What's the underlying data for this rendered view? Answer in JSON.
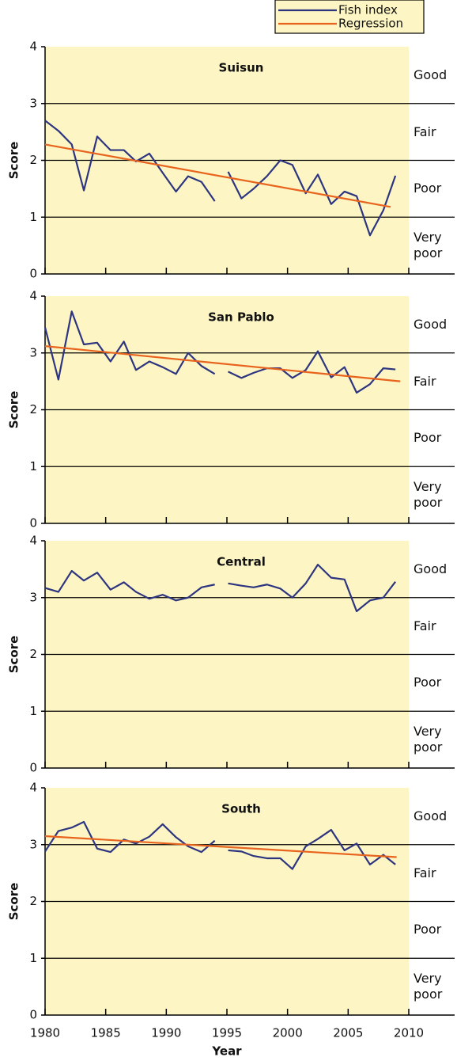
{
  "chart_data": [
    {
      "type": "line",
      "title": "Suisun",
      "ylabel": "Score",
      "x": [
        1980,
        1981.1,
        1982.2,
        1983.2,
        1984.3,
        1985.4,
        1986.5,
        1987.5,
        1988.6,
        1989.7,
        1990.8,
        1991.8,
        1992.9,
        1994.0,
        1994.5,
        1995.1,
        1996.2,
        1997.2,
        1998.3,
        1999.4,
        2000.4,
        2001.5,
        2002.5,
        2003.6,
        2004.7,
        2005.7,
        2006.8,
        2007.9,
        2008.9
      ],
      "series": [
        {
          "name": "Fish index",
          "color": "#2e3580",
          "values": [
            2.7,
            2.52,
            2.28,
            1.47,
            2.42,
            2.18,
            2.18,
            1.98,
            2.12,
            1.78,
            1.45,
            1.72,
            1.62,
            1.28,
            null,
            1.8,
            1.33,
            1.5,
            1.72,
            2.0,
            1.92,
            1.42,
            1.75,
            1.23,
            1.45,
            1.37,
            0.68,
            1.12,
            1.73
          ]
        },
        {
          "name": "Regression",
          "color": "#e8641e",
          "x": [
            1980,
            2008.5
          ],
          "values": [
            2.28,
            1.18
          ]
        }
      ],
      "bands": [
        "Very\npoor",
        "Poor",
        "Fair",
        "Good"
      ],
      "xlim": [
        1980,
        2010
      ],
      "xticks": [
        1980,
        1985,
        1990,
        1995,
        2000,
        2005,
        2010
      ],
      "ylim": [
        0,
        4
      ],
      "yticks": [
        0,
        1,
        2,
        3,
        4
      ],
      "grid": true,
      "legend": "top-right"
    },
    {
      "type": "line",
      "title": "San Pablo",
      "ylabel": "Score",
      "x": [
        1980,
        1981.1,
        1982.2,
        1983.2,
        1984.3,
        1985.4,
        1986.5,
        1987.5,
        1988.6,
        1989.7,
        1990.8,
        1991.8,
        1992.9,
        1994.0,
        1994.5,
        1995.1,
        1996.2,
        1997.2,
        1998.3,
        1999.4,
        2000.4,
        2001.5,
        2002.5,
        2003.6,
        2004.7,
        2005.7,
        2006.8,
        2007.9,
        2008.9
      ],
      "series": [
        {
          "name": "Fish index",
          "color": "#2e3580",
          "values": [
            3.45,
            2.53,
            3.73,
            3.15,
            3.18,
            2.85,
            3.2,
            2.7,
            2.85,
            2.75,
            2.63,
            3.0,
            2.77,
            2.63,
            null,
            2.67,
            2.56,
            2.65,
            2.73,
            2.73,
            2.56,
            2.7,
            3.03,
            2.57,
            2.75,
            2.3,
            2.45,
            2.73,
            2.71
          ]
        },
        {
          "name": "Regression",
          "color": "#e8641e",
          "x": [
            1980,
            2009.3
          ],
          "values": [
            3.12,
            2.5
          ]
        }
      ],
      "bands": [
        "Very\npoor",
        "Poor",
        "Fair",
        "Good"
      ],
      "xlim": [
        1980,
        2010
      ],
      "xticks": [
        1980,
        1985,
        1990,
        1995,
        2000,
        2005,
        2010
      ],
      "ylim": [
        0,
        4
      ],
      "yticks": [
        0,
        1,
        2,
        3,
        4
      ],
      "grid": true
    },
    {
      "type": "line",
      "title": "Central",
      "ylabel": "Score",
      "x": [
        1980,
        1981.1,
        1982.2,
        1983.2,
        1984.3,
        1985.4,
        1986.5,
        1987.5,
        1988.6,
        1989.7,
        1990.8,
        1991.8,
        1992.9,
        1994.0,
        1994.5,
        1995.1,
        1996.2,
        1997.2,
        1998.3,
        1999.4,
        2000.4,
        2001.5,
        2002.5,
        2003.6,
        2004.7,
        2005.7,
        2006.8,
        2007.9,
        2008.9
      ],
      "series": [
        {
          "name": "Fish index",
          "color": "#2e3580",
          "values": [
            3.17,
            3.1,
            3.47,
            3.3,
            3.44,
            3.14,
            3.27,
            3.1,
            2.98,
            3.05,
            2.95,
            3.0,
            3.18,
            3.23,
            null,
            3.25,
            3.21,
            3.18,
            3.23,
            3.16,
            3.0,
            3.25,
            3.58,
            3.35,
            3.32,
            2.76,
            2.95,
            3.0,
            3.28
          ]
        }
      ],
      "bands": [
        "Very\npoor",
        "Poor",
        "Fair",
        "Good"
      ],
      "xlim": [
        1980,
        2010
      ],
      "xticks": [
        1980,
        1985,
        1990,
        1995,
        2000,
        2005,
        2010
      ],
      "ylim": [
        0,
        4
      ],
      "yticks": [
        0,
        1,
        2,
        3,
        4
      ],
      "grid": true
    },
    {
      "type": "line",
      "title": "South",
      "ylabel": "Score",
      "xlabel": "Year",
      "xtick_labels": true,
      "x": [
        1980,
        1981.1,
        1982.2,
        1983.2,
        1984.3,
        1985.4,
        1986.5,
        1987.5,
        1988.6,
        1989.7,
        1990.8,
        1991.8,
        1992.9,
        1994.0,
        1994.5,
        1995.1,
        1996.2,
        1997.2,
        1998.3,
        1999.4,
        2000.4,
        2001.5,
        2002.5,
        2003.6,
        2004.7,
        2005.7,
        2006.8,
        2007.9,
        2008.9
      ],
      "series": [
        {
          "name": "Fish index",
          "color": "#2e3580",
          "values": [
            2.88,
            3.24,
            3.3,
            3.4,
            2.93,
            2.87,
            3.09,
            3.02,
            3.14,
            3.36,
            3.13,
            2.97,
            2.87,
            3.07,
            null,
            2.9,
            2.88,
            2.8,
            2.76,
            2.76,
            2.57,
            2.97,
            3.1,
            3.26,
            2.9,
            3.02,
            2.65,
            2.82,
            2.65
          ]
        },
        {
          "name": "Regression",
          "color": "#e8641e",
          "x": [
            1980,
            2009.0
          ],
          "values": [
            3.15,
            2.78
          ]
        }
      ],
      "bands": [
        "Very\npoor",
        "Poor",
        "Fair",
        "Good"
      ],
      "xlim": [
        1980,
        2010
      ],
      "xticks": [
        1980,
        1985,
        1990,
        1995,
        2000,
        2005,
        2010
      ],
      "ylim": [
        0,
        4
      ],
      "yticks": [
        0,
        1,
        2,
        3,
        4
      ],
      "grid": true
    }
  ]
}
